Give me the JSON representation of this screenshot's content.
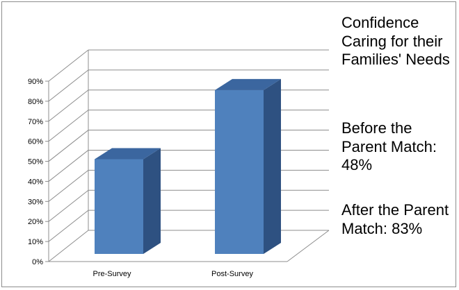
{
  "chart_data": {
    "type": "bar",
    "categories": [
      "Pre-Survey",
      "Post-Survey"
    ],
    "values": [
      48,
      83
    ],
    "ylim": [
      0,
      90
    ],
    "yticks": [
      "0%",
      "10%",
      "20%",
      "30%",
      "40%",
      "50%",
      "60%",
      "70%",
      "80%",
      "90%"
    ],
    "grid": true,
    "three_d": true,
    "bar_color": "#4F81BD",
    "bar_side_color": "#2E5181",
    "bar_top_color": "#3B669F"
  },
  "annotation": {
    "title": "Confidence Caring for their Families' Needs",
    "before": "Before the Parent Match: 48%",
    "after": "After the Parent Match: 83%"
  }
}
